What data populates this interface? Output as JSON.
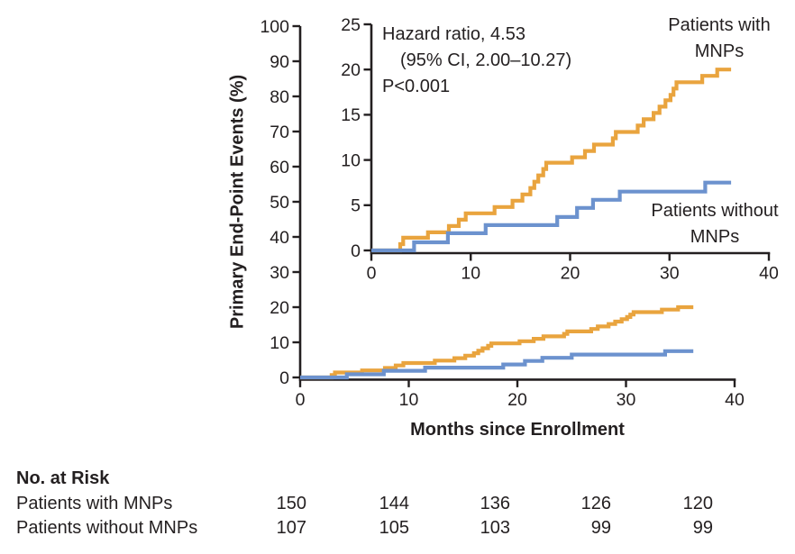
{
  "chart_data": {
    "type": "line",
    "variant": "kaplan-meier-cumulative-incidence-step",
    "xlabel": "Months since Enrollment",
    "ylabel": "Primary End-Point Events (%)",
    "annotation": {
      "line1": "Hazard ratio, 4.53",
      "line2": "(95% CI, 2.00–10.27)",
      "line3": "P<0.001"
    },
    "main_panel": {
      "xlim": [
        0,
        40
      ],
      "ylim": [
        0,
        100
      ],
      "xticks": [
        0,
        10,
        20,
        30,
        40
      ],
      "yticks": [
        0,
        10,
        20,
        30,
        40,
        50,
        60,
        70,
        80,
        90,
        100
      ],
      "grid": false
    },
    "inset_panel": {
      "xlim": [
        0,
        40
      ],
      "ylim": [
        0,
        25
      ],
      "xticks": [
        0,
        10,
        20,
        30,
        40
      ],
      "yticks": [
        0,
        5,
        10,
        15,
        20,
        25
      ],
      "grid": false
    },
    "series": [
      {
        "name": "Patients with MNPs",
        "color": "#E9A43E",
        "label_lines": [
          "Patients with",
          "MNPs"
        ],
        "points": [
          [
            0,
            0
          ],
          [
            2.9,
            0.7
          ],
          [
            3.2,
            1.4
          ],
          [
            5.7,
            2.0
          ],
          [
            7.8,
            2.7
          ],
          [
            8.8,
            3.4
          ],
          [
            9.5,
            4.1
          ],
          [
            12.4,
            4.8
          ],
          [
            14.2,
            5.5
          ],
          [
            15.2,
            6.2
          ],
          [
            16.0,
            6.9
          ],
          [
            16.4,
            7.6
          ],
          [
            16.8,
            8.3
          ],
          [
            17.3,
            9.0
          ],
          [
            17.6,
            9.7
          ],
          [
            20.2,
            10.3
          ],
          [
            21.5,
            11.0
          ],
          [
            22.4,
            11.7
          ],
          [
            24.3,
            12.4
          ],
          [
            24.6,
            13.1
          ],
          [
            26.8,
            13.8
          ],
          [
            27.4,
            14.5
          ],
          [
            28.4,
            15.2
          ],
          [
            29.0,
            15.9
          ],
          [
            29.6,
            16.6
          ],
          [
            30.1,
            17.2
          ],
          [
            30.4,
            17.9
          ],
          [
            30.7,
            18.6
          ],
          [
            33.3,
            19.3
          ],
          [
            34.8,
            20.0
          ],
          [
            36.2,
            20.0
          ]
        ]
      },
      {
        "name": "Patients without MNPs",
        "color": "#6C92CE",
        "label_lines": [
          "Patients without",
          "MNPs"
        ],
        "points": [
          [
            0,
            0
          ],
          [
            4.3,
            0.9
          ],
          [
            7.7,
            1.9
          ],
          [
            11.5,
            2.8
          ],
          [
            18.7,
            3.7
          ],
          [
            20.7,
            4.7
          ],
          [
            22.3,
            5.6
          ],
          [
            25.0,
            6.5
          ],
          [
            33.6,
            7.5
          ],
          [
            36.2,
            7.5
          ]
        ]
      }
    ]
  },
  "risk_table": {
    "title": "No. at Risk",
    "rows": [
      {
        "label": "Patients with MNPs",
        "values": [
          "150",
          "144",
          "136",
          "126",
          "120"
        ]
      },
      {
        "label": "Patients without MNPs",
        "values": [
          "107",
          "105",
          "103",
          "99",
          "99"
        ]
      }
    ]
  },
  "colors": {
    "with_mnps": "#E9A43E",
    "without_mnps": "#6C92CE",
    "text": "#231F20"
  }
}
